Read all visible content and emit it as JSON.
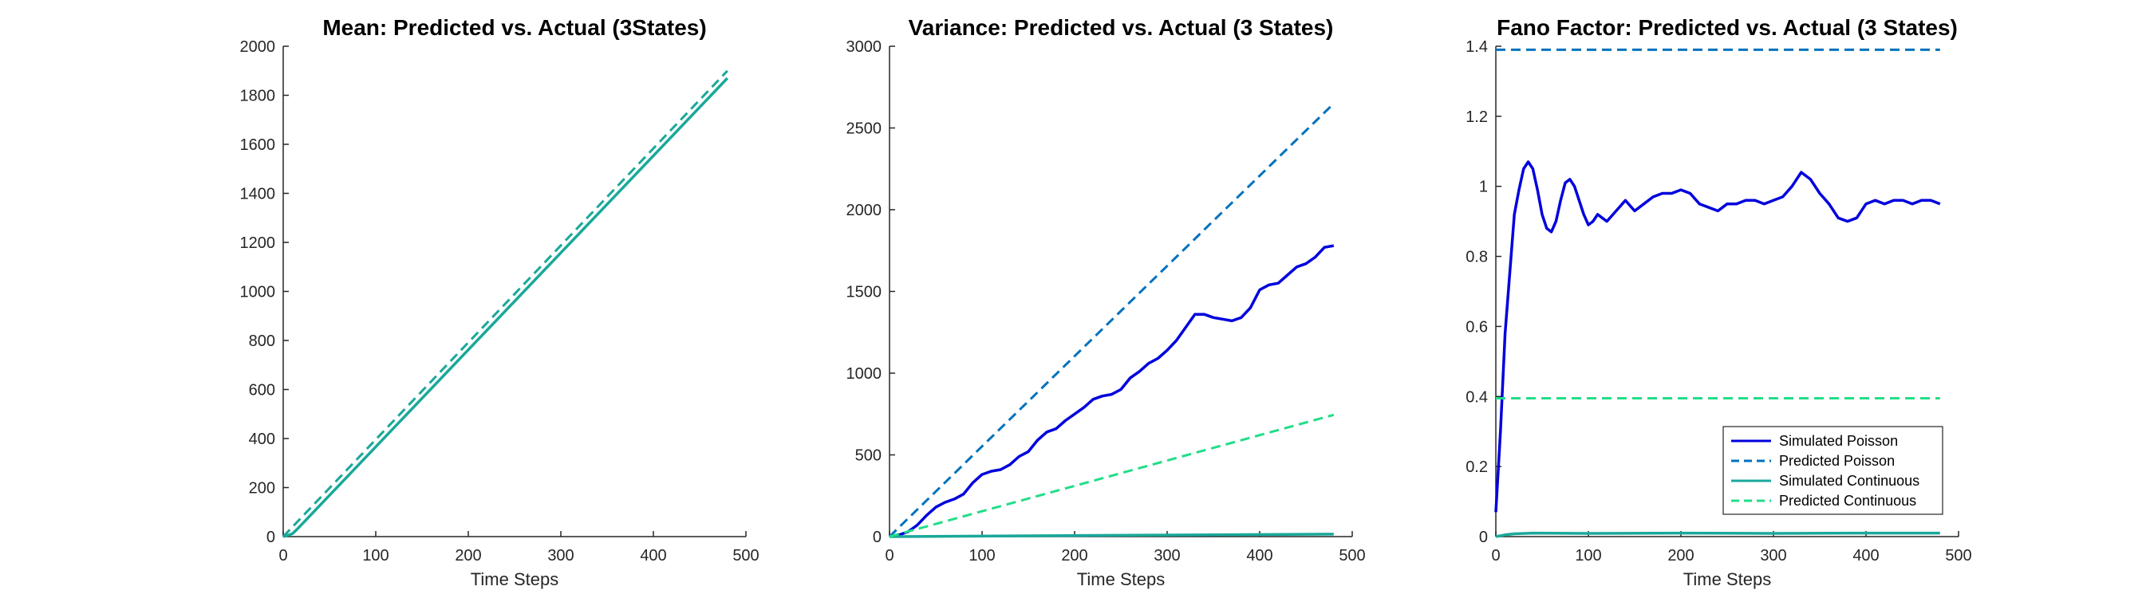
{
  "chart_data": [
    {
      "type": "line",
      "title": "Mean: Predicted vs. Actual (3States)",
      "xlabel": "Time Steps",
      "ylabel": "",
      "xlim": [
        0,
        500
      ],
      "ylim": [
        0,
        2000
      ],
      "xticks": [
        0,
        100,
        200,
        300,
        400,
        500
      ],
      "yticks": [
        0,
        200,
        400,
        600,
        800,
        1000,
        1200,
        1400,
        1600,
        1800,
        2000
      ],
      "series": [
        {
          "color": "#1aa89a",
          "style": "solid",
          "x": [
            0,
            5,
            10,
            15,
            480
          ],
          "y": [
            0,
            5,
            12,
            30,
            1870
          ]
        },
        {
          "color": "#1aa89a",
          "style": "dashed",
          "x": [
            0,
            480
          ],
          "y": [
            0,
            1900
          ]
        }
      ]
    },
    {
      "type": "line",
      "title": "Variance: Predicted vs. Actual (3 States)",
      "xlabel": "Time Steps",
      "ylabel": "",
      "xlim": [
        0,
        500
      ],
      "ylim": [
        0,
        3000
      ],
      "xticks": [
        0,
        100,
        200,
        300,
        400,
        500
      ],
      "yticks": [
        0,
        500,
        1000,
        1500,
        2000,
        2500,
        3000
      ],
      "series": [
        {
          "color": "#0000dd",
          "style": "solid",
          "x": [
            0,
            10,
            20,
            30,
            40,
            50,
            60,
            70,
            80,
            90,
            100,
            110,
            120,
            130,
            140,
            150,
            160,
            170,
            180,
            190,
            200,
            210,
            220,
            230,
            240,
            250,
            260,
            270,
            280,
            290,
            300,
            310,
            320,
            330,
            340,
            350,
            360,
            370,
            380,
            390,
            400,
            410,
            420,
            430,
            440,
            450,
            460,
            470,
            480
          ],
          "y": [
            0,
            10,
            30,
            70,
            130,
            180,
            210,
            230,
            260,
            330,
            380,
            400,
            410,
            440,
            490,
            520,
            590,
            640,
            660,
            710,
            750,
            790,
            840,
            860,
            870,
            900,
            970,
            1010,
            1060,
            1090,
            1140,
            1200,
            1280,
            1360,
            1360,
            1340,
            1330,
            1320,
            1340,
            1400,
            1510,
            1540,
            1550,
            1600,
            1650,
            1670,
            1710,
            1770,
            1780
          ]
        },
        {
          "color": "#0072bd",
          "style": "dashed",
          "x": [
            0,
            480
          ],
          "y": [
            0,
            2650
          ]
        },
        {
          "color": "#1aa89a",
          "style": "solid",
          "x": [
            0,
            480
          ],
          "y": [
            0,
            15
          ]
        },
        {
          "color": "#22dd88",
          "style": "dashed",
          "x": [
            0,
            480
          ],
          "y": [
            0,
            745
          ]
        }
      ]
    },
    {
      "type": "line",
      "title": "Fano Factor: Predicted vs. Actual (3 States)",
      "xlabel": "Time Steps",
      "ylabel": "",
      "xlim": [
        0,
        500
      ],
      "ylim": [
        0,
        1.4
      ],
      "xticks": [
        0,
        100,
        200,
        300,
        400,
        500
      ],
      "yticks": [
        0,
        0.2,
        0.4,
        0.6,
        0.8,
        1,
        1.2,
        1.4
      ],
      "legend_position": "bottom-right",
      "series": [
        {
          "name": "Simulated Poisson",
          "color": "#0000dd",
          "style": "solid",
          "x": [
            0,
            5,
            10,
            15,
            20,
            25,
            30,
            35,
            40,
            45,
            50,
            55,
            60,
            65,
            70,
            75,
            80,
            85,
            90,
            95,
            100,
            105,
            110,
            115,
            120,
            130,
            140,
            150,
            160,
            170,
            180,
            190,
            200,
            210,
            220,
            230,
            240,
            250,
            260,
            270,
            280,
            290,
            300,
            310,
            320,
            330,
            340,
            350,
            360,
            370,
            380,
            390,
            400,
            410,
            420,
            430,
            440,
            450,
            460,
            470,
            480
          ],
          "y": [
            0.07,
            0.3,
            0.58,
            0.75,
            0.92,
            0.99,
            1.05,
            1.07,
            1.05,
            0.99,
            0.92,
            0.88,
            0.87,
            0.9,
            0.96,
            1.01,
            1.02,
            1.0,
            0.96,
            0.92,
            0.89,
            0.9,
            0.92,
            0.91,
            0.9,
            0.93,
            0.96,
            0.93,
            0.95,
            0.97,
            0.98,
            0.98,
            0.99,
            0.98,
            0.95,
            0.94,
            0.93,
            0.95,
            0.95,
            0.96,
            0.96,
            0.95,
            0.96,
            0.97,
            1.0,
            1.04,
            1.02,
            0.98,
            0.95,
            0.91,
            0.9,
            0.91,
            0.95,
            0.96,
            0.95,
            0.96,
            0.96,
            0.95,
            0.96,
            0.96,
            0.95
          ]
        },
        {
          "name": "Predicted Poisson",
          "color": "#0072bd",
          "style": "dashed",
          "x": [
            0,
            480
          ],
          "y": [
            1.39,
            1.39
          ]
        },
        {
          "name": "Simulated Continuous",
          "color": "#1aa89a",
          "style": "solid",
          "x": [
            0,
            10,
            20,
            40,
            100,
            200,
            300,
            400,
            480
          ],
          "y": [
            0.0,
            0.005,
            0.008,
            0.01,
            0.009,
            0.01,
            0.009,
            0.01,
            0.01
          ]
        },
        {
          "name": "Predicted Continuous",
          "color": "#22dd88",
          "style": "dashed",
          "x": [
            0,
            480
          ],
          "y": [
            0.395,
            0.395
          ]
        }
      ]
    }
  ]
}
